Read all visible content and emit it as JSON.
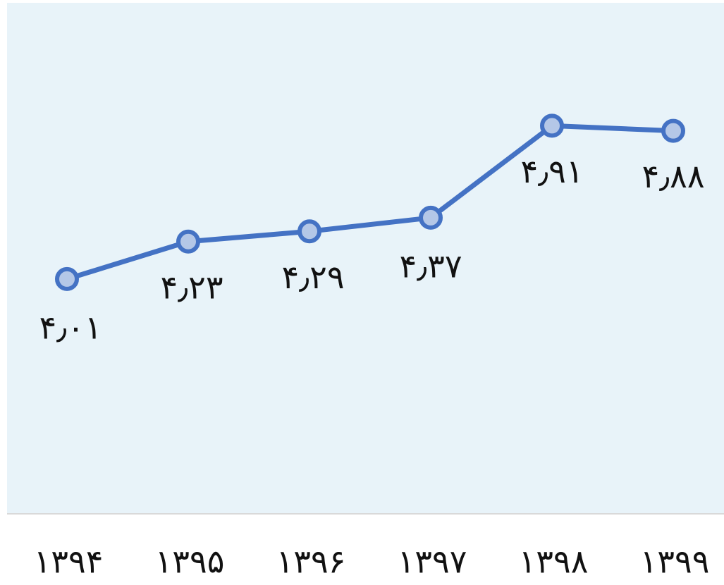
{
  "chart_data": {
    "type": "line",
    "title": "",
    "xlabel": "",
    "ylabel": "",
    "categories": [
      "۱۳۹۴",
      "۱۳۹۵",
      "۱۳۹۶",
      "۱۳۹۷",
      "۱۳۹۸",
      "۱۳۹۹"
    ],
    "series": [
      {
        "values": [
          4.01,
          4.23,
          4.29,
          4.37,
          4.91,
          4.88
        ],
        "data_labels": [
          "۴٫۰۱",
          "۴٫۲۳",
          "۴٫۲۹",
          "۴٫۳۷",
          "۴٫۹۱",
          "۴٫۸۸"
        ],
        "color": "#4472c4",
        "marker_fill": "#b4c7e7"
      }
    ],
    "ylim": [
      3,
      5.4
    ],
    "grid": false,
    "legend": "none",
    "colors": {
      "plot_background": "#e8f3f9",
      "axis_line": "#d9d9d9"
    }
  }
}
